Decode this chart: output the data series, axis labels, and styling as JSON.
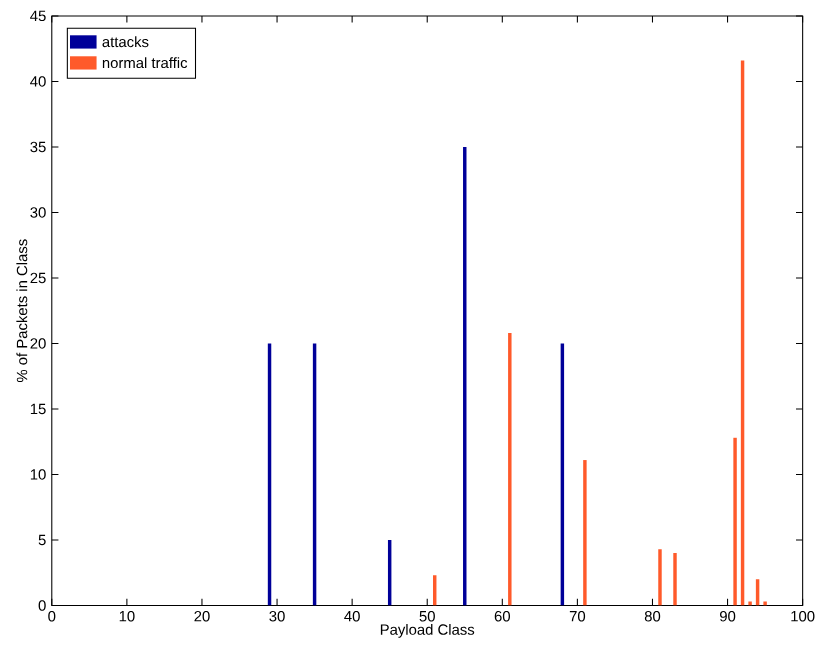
{
  "chart_data": {
    "type": "bar",
    "xlabel": "Payload Class",
    "ylabel": "% of Packets in Class",
    "x": [
      0,
      1,
      2,
      3,
      4,
      5,
      6,
      7,
      8,
      9,
      10,
      11,
      12,
      13,
      14,
      15,
      16,
      17,
      18,
      19,
      20,
      21,
      22,
      23,
      24,
      25,
      26,
      27,
      28,
      29,
      30,
      31,
      32,
      33,
      34,
      35,
      36,
      37,
      38,
      39,
      40,
      41,
      42,
      43,
      44,
      45,
      46,
      47,
      48,
      49,
      50,
      51,
      52,
      53,
      54,
      55,
      56,
      57,
      58,
      59,
      60,
      61,
      62,
      63,
      64,
      65,
      66,
      67,
      68,
      69,
      70,
      71,
      72,
      73,
      74,
      75,
      76,
      77,
      78,
      79,
      80,
      81,
      82,
      83,
      84,
      85,
      86,
      87,
      88,
      89,
      90,
      91,
      92,
      93,
      94,
      95,
      96,
      97,
      98,
      99,
      100
    ],
    "series": [
      {
        "name": "attacks",
        "color": "#000099",
        "values": [
          0,
          0,
          0,
          0,
          0,
          0,
          0,
          0,
          0,
          0,
          0,
          0,
          0,
          0,
          0,
          0,
          0,
          0,
          0,
          0,
          0,
          0,
          0,
          0,
          0,
          0,
          0,
          0,
          0,
          20,
          0,
          0,
          0,
          0,
          0,
          20,
          0,
          0,
          0,
          0,
          0,
          0,
          0,
          0,
          0,
          5,
          0,
          0,
          0,
          0,
          0,
          0,
          0,
          0,
          0,
          35,
          0,
          0,
          0,
          0,
          0,
          0,
          0,
          0,
          0,
          0,
          0,
          0,
          20,
          0,
          0,
          0,
          0,
          0,
          0,
          0,
          0,
          0,
          0,
          0,
          0,
          0,
          0,
          0,
          0,
          0,
          0,
          0,
          0,
          0,
          0,
          0,
          0,
          0,
          0,
          0,
          0,
          0,
          0,
          0,
          0
        ]
      },
      {
        "name": "normal traffic",
        "color": "#ff5a2a",
        "values": [
          0,
          0,
          0,
          0,
          0,
          0,
          0,
          0,
          0,
          0,
          0,
          0,
          0,
          0,
          0,
          0,
          0,
          0,
          0,
          0,
          0,
          0,
          0,
          0,
          0,
          0,
          0,
          0,
          0,
          0,
          0,
          0,
          0,
          0,
          0,
          0,
          0,
          0,
          0,
          0,
          0,
          0,
          0,
          0,
          0,
          0,
          0,
          0,
          0,
          0,
          0,
          2.3,
          0,
          0,
          0,
          0,
          0,
          0,
          0,
          0,
          0,
          20.8,
          0,
          0,
          0,
          0,
          0,
          0,
          0,
          0,
          0,
          11.1,
          0,
          0,
          0,
          0,
          0,
          0,
          0,
          0,
          0,
          4.3,
          0,
          4,
          0,
          0,
          0,
          0,
          0,
          0,
          0,
          12.8,
          41.6,
          0.3,
          2,
          0.3,
          0,
          0,
          0,
          0,
          0
        ]
      }
    ],
    "xlim": [
      0,
      100
    ],
    "xticks": [
      0,
      10,
      20,
      30,
      40,
      50,
      60,
      70,
      80,
      90,
      100
    ],
    "ylim": [
      0,
      45
    ],
    "yticks": [
      0,
      5,
      10,
      15,
      20,
      25,
      30,
      35,
      40,
      45
    ],
    "grid": false,
    "legend": "top left"
  }
}
